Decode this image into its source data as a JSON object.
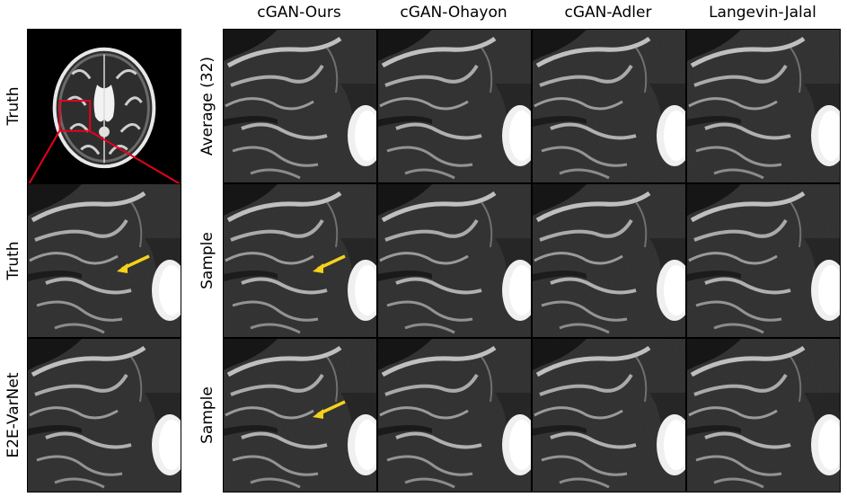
{
  "columns": [
    "cGAN-Ours",
    "cGAN-Ohayon",
    "cGAN-Adler",
    "Langevin-Jalal"
  ],
  "row_labels": {
    "average": "Average (32)",
    "sample": "Sample"
  },
  "left_labels": {
    "truth": "Truth",
    "e2e": "E2E-VarNet"
  },
  "colors": {
    "zoom_box": "#e8001c",
    "arrow": "#f5d21b"
  }
}
